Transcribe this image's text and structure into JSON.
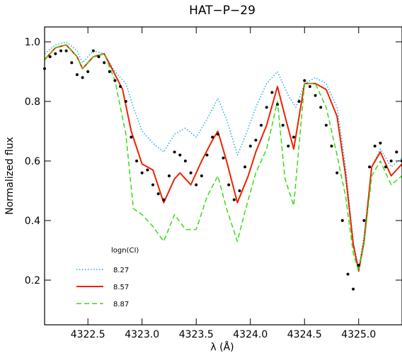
{
  "chart_data": {
    "type": "line",
    "title": "HAT−P−29",
    "xlabel": "λ (Å)",
    "ylabel": "Normalized flux",
    "xlim": [
      4322.1,
      4325.4
    ],
    "ylim": [
      0.05,
      1.05
    ],
    "x_ticks": [
      4322.5,
      4323.0,
      4323.5,
      4324.0,
      4324.5,
      4325.0
    ],
    "x_tick_labels": [
      "4322.5",
      "4323.0",
      "4323.5",
      "4324.0",
      "4324.5",
      "4325.0"
    ],
    "y_ticks": [
      0.2,
      0.4,
      0.6,
      0.8,
      1.0
    ],
    "y_tick_labels": [
      "0.2",
      "0.4",
      "0.6",
      "0.8",
      "1.0"
    ],
    "grid": false,
    "legend": {
      "title": "logn(CI)",
      "placement": "bottom-left",
      "entries": [
        {
          "label": "8.27",
          "color": "#22aadd",
          "style": "dotted"
        },
        {
          "label": "8.57",
          "color": "#ee2200",
          "style": "solid"
        },
        {
          "label": "8.87",
          "color": "#33dd11",
          "style": "dashed"
        }
      ]
    },
    "series": [
      {
        "name": "8.27",
        "color": "#22aadd",
        "style": "dotted",
        "x": [
          4322.1,
          4322.2,
          4322.3,
          4322.4,
          4322.45,
          4322.55,
          4322.65,
          4322.75,
          4322.85,
          4322.92,
          4323.0,
          4323.1,
          4323.2,
          4323.3,
          4323.4,
          4323.5,
          4323.6,
          4323.7,
          4323.78,
          4323.88,
          4323.95,
          4324.05,
          4324.15,
          4324.25,
          4324.35,
          4324.42,
          4324.5,
          4324.6,
          4324.7,
          4324.8,
          4324.88,
          4324.95,
          4325.0,
          4325.05,
          4325.12,
          4325.2,
          4325.3,
          4325.4
        ],
        "y": [
          0.96,
          0.99,
          1.0,
          0.97,
          0.93,
          0.97,
          0.96,
          0.9,
          0.86,
          0.78,
          0.7,
          0.66,
          0.63,
          0.69,
          0.71,
          0.68,
          0.74,
          0.81,
          0.74,
          0.62,
          0.68,
          0.78,
          0.86,
          0.9,
          0.82,
          0.78,
          0.86,
          0.88,
          0.86,
          0.78,
          0.58,
          0.33,
          0.24,
          0.35,
          0.58,
          0.64,
          0.58,
          0.61
        ]
      },
      {
        "name": "8.57",
        "color": "#ee2200",
        "style": "solid",
        "x": [
          4322.1,
          4322.2,
          4322.3,
          4322.4,
          4322.45,
          4322.55,
          4322.65,
          4322.75,
          4322.82,
          4322.9,
          4323.0,
          4323.1,
          4323.2,
          4323.3,
          4323.35,
          4323.45,
          4323.55,
          4323.65,
          4323.7,
          4323.78,
          4323.88,
          4323.98,
          4324.05,
          4324.15,
          4324.25,
          4324.32,
          4324.4,
          4324.5,
          4324.6,
          4324.7,
          4324.8,
          4324.88,
          4324.95,
          4325.0,
          4325.05,
          4325.12,
          4325.2,
          4325.3,
          4325.4
        ],
        "y": [
          0.94,
          0.98,
          0.99,
          0.95,
          0.91,
          0.95,
          0.96,
          0.89,
          0.84,
          0.7,
          0.59,
          0.57,
          0.46,
          0.54,
          0.56,
          0.52,
          0.6,
          0.67,
          0.7,
          0.6,
          0.46,
          0.55,
          0.63,
          0.72,
          0.85,
          0.75,
          0.64,
          0.86,
          0.86,
          0.84,
          0.75,
          0.55,
          0.32,
          0.23,
          0.33,
          0.58,
          0.63,
          0.55,
          0.59
        ]
      },
      {
        "name": "8.87",
        "color": "#33dd11",
        "style": "dashed",
        "x": [
          4322.1,
          4322.2,
          4322.3,
          4322.4,
          4322.45,
          4322.55,
          4322.65,
          4322.75,
          4322.85,
          4322.92,
          4323.0,
          4323.1,
          4323.2,
          4323.3,
          4323.4,
          4323.5,
          4323.6,
          4323.7,
          4323.78,
          4323.88,
          4323.95,
          4324.05,
          4324.15,
          4324.25,
          4324.32,
          4324.4,
          4324.5,
          4324.6,
          4324.7,
          4324.8,
          4324.88,
          4324.95,
          4325.0,
          4325.05,
          4325.12,
          4325.2,
          4325.3,
          4325.4
        ],
        "y": [
          0.94,
          0.98,
          0.99,
          0.95,
          0.91,
          0.95,
          0.96,
          0.87,
          0.69,
          0.44,
          0.42,
          0.38,
          0.33,
          0.42,
          0.37,
          0.37,
          0.48,
          0.55,
          0.44,
          0.33,
          0.43,
          0.56,
          0.64,
          0.8,
          0.54,
          0.45,
          0.86,
          0.86,
          0.78,
          0.62,
          0.48,
          0.29,
          0.23,
          0.32,
          0.55,
          0.6,
          0.52,
          0.55
        ]
      }
    ],
    "observed": {
      "name": "observed",
      "color": "#000000",
      "style": "points",
      "x": [
        4322.1,
        4322.15,
        4322.2,
        4322.25,
        4322.3,
        4322.35,
        4322.4,
        4322.45,
        4322.5,
        4322.55,
        4322.6,
        4322.65,
        4322.7,
        4322.75,
        4322.8,
        4322.85,
        4322.9,
        4322.95,
        4323.0,
        4323.05,
        4323.1,
        4323.15,
        4323.2,
        4323.25,
        4323.3,
        4323.35,
        4323.4,
        4323.45,
        4323.5,
        4323.55,
        4323.6,
        4323.65,
        4323.7,
        4323.75,
        4323.8,
        4323.85,
        4323.9,
        4323.95,
        4324.0,
        4324.05,
        4324.1,
        4324.15,
        4324.2,
        4324.25,
        4324.3,
        4324.35,
        4324.4,
        4324.45,
        4324.5,
        4324.55,
        4324.6,
        4324.65,
        4324.7,
        4324.75,
        4324.8,
        4324.85,
        4324.9,
        4324.95,
        4325.0,
        4325.05,
        4325.1,
        4325.15,
        4325.2,
        4325.25,
        4325.3,
        4325.35,
        4325.4
      ],
      "y": [
        0.91,
        0.95,
        0.96,
        0.97,
        0.97,
        0.93,
        0.89,
        0.88,
        0.9,
        0.97,
        0.95,
        0.93,
        0.9,
        0.87,
        0.85,
        0.8,
        0.68,
        0.6,
        0.56,
        0.57,
        0.52,
        0.49,
        0.47,
        0.55,
        0.63,
        0.62,
        0.6,
        0.56,
        0.52,
        0.55,
        0.62,
        0.68,
        0.69,
        0.61,
        0.52,
        0.47,
        0.5,
        0.58,
        0.65,
        0.67,
        0.72,
        0.78,
        0.83,
        0.79,
        0.72,
        0.65,
        0.68,
        0.8,
        0.87,
        0.85,
        0.82,
        0.78,
        0.72,
        0.65,
        0.56,
        0.4,
        0.22,
        0.17,
        0.25,
        0.4,
        0.58,
        0.65,
        0.66,
        0.58,
        0.6,
        0.63,
        0.6
      ]
    }
  }
}
